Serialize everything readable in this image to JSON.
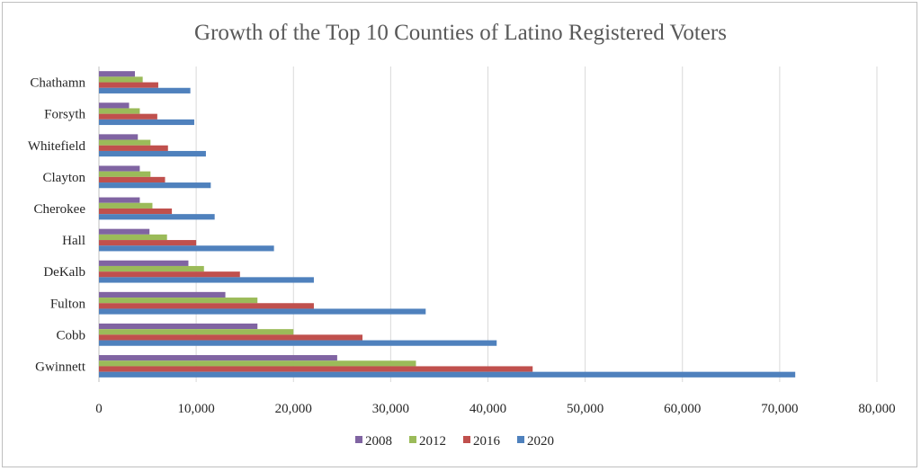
{
  "chart_data": {
    "type": "bar",
    "orientation": "horizontal",
    "title": "Growth of  the Top 10 Counties of Latino Registered Voters",
    "xlabel": "",
    "ylabel": "",
    "categories": [
      "Chathamn",
      "Forsyth",
      "Whitefield",
      "Clayton",
      "Cherokee",
      "Hall",
      "DeKalb",
      "Fulton",
      "Cobb",
      "Gwinnett"
    ],
    "series": [
      {
        "name": "2008",
        "color": "#8064a2",
        "values": [
          3700,
          3100,
          4000,
          4200,
          4200,
          5200,
          9200,
          13000,
          16300,
          24500
        ]
      },
      {
        "name": "2012",
        "color": "#9bbb59",
        "values": [
          4500,
          4200,
          5300,
          5300,
          5500,
          7000,
          10800,
          16300,
          20000,
          32600
        ]
      },
      {
        "name": "2016",
        "color": "#c0504d",
        "values": [
          6100,
          6000,
          7100,
          6800,
          7500,
          10000,
          14500,
          22100,
          27100,
          44600
        ]
      },
      {
        "name": "2020",
        "color": "#4f81bd",
        "values": [
          9400,
          9800,
          11000,
          11500,
          11900,
          18000,
          22100,
          33600,
          40900,
          71600
        ]
      }
    ],
    "xlim": [
      0,
      80000
    ],
    "xticks": [
      0,
      10000,
      20000,
      30000,
      40000,
      50000,
      60000,
      70000,
      80000
    ],
    "xtick_labels": [
      "0",
      "10,000",
      "20,000",
      "30,000",
      "40,000",
      "50,000",
      "60,000",
      "70,000",
      "80,000"
    ],
    "grid": true,
    "legend_position": "bottom"
  }
}
